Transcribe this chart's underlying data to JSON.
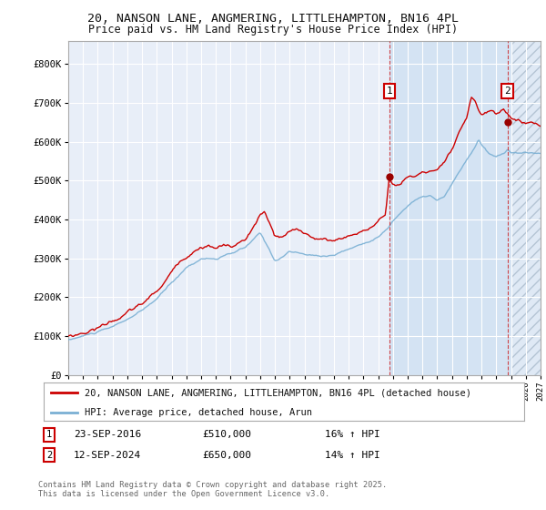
{
  "title_line1": "20, NANSON LANE, ANGMERING, LITTLEHAMPTON, BN16 4PL",
  "title_line2": "Price paid vs. HM Land Registry's House Price Index (HPI)",
  "bg_color": "#dce8f5",
  "bg_color_early": "#e8eef8",
  "grid_color": "#ffffff",
  "red_line_color": "#cc0000",
  "blue_line_color": "#7ab0d4",
  "marker1_label": "23-SEP-2016",
  "marker1_price_str": "£510,000",
  "marker1_hpi": "16% ↑ HPI",
  "marker2_label": "12-SEP-2024",
  "marker2_price_str": "£650,000",
  "marker2_hpi": "14% ↑ HPI",
  "ylim_min": 0,
  "ylim_max": 860000,
  "year_start": 1995,
  "year_end": 2027,
  "footer_text": "Contains HM Land Registry data © Crown copyright and database right 2025.\nThis data is licensed under the Open Government Licence v3.0.",
  "legend_red_label": "20, NANSON LANE, ANGMERING, LITTLEHAMPTON, BN16 4PL (detached house)",
  "legend_blue_label": "HPI: Average price, detached house, Arun"
}
